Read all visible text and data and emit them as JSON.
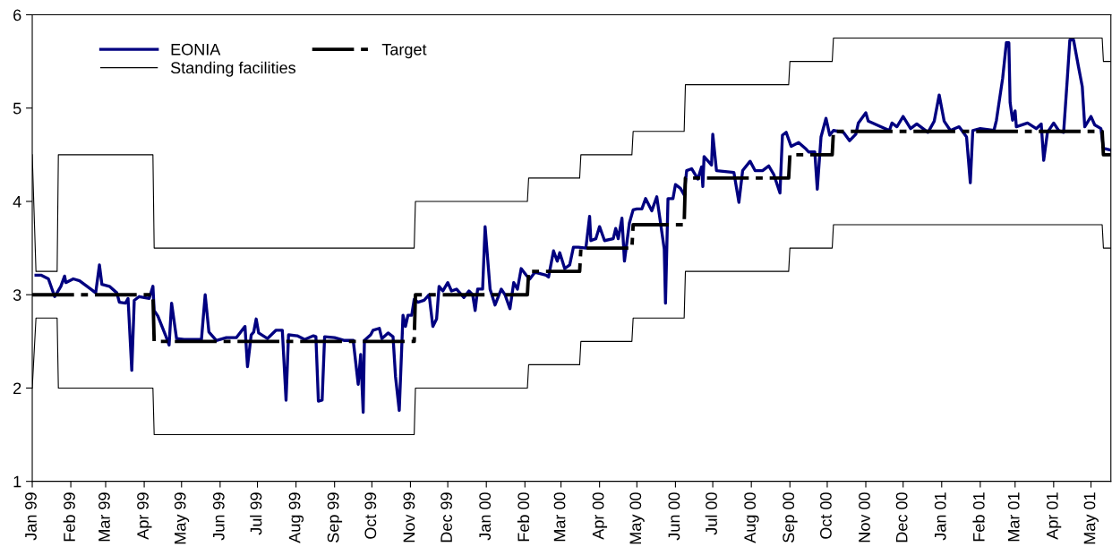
{
  "chart_data": {
    "type": "line",
    "xlim": [
      "1999-01-01",
      "2001-05-17"
    ],
    "ylim": [
      1,
      6
    ],
    "yticks": [
      1,
      2,
      3,
      4,
      5,
      6
    ],
    "xticks": [
      {
        "value": "1999-01-01",
        "label": "Jan 99"
      },
      {
        "value": "1999-02-01",
        "label": "Feb 99"
      },
      {
        "value": "1999-03-01",
        "label": "Mar 99"
      },
      {
        "value": "1999-04-01",
        "label": "Apr 99"
      },
      {
        "value": "1999-05-01",
        "label": "May 99"
      },
      {
        "value": "1999-06-01",
        "label": "Jun 99"
      },
      {
        "value": "1999-07-01",
        "label": "Jul 99"
      },
      {
        "value": "1999-08-01",
        "label": "Aug 99"
      },
      {
        "value": "1999-09-01",
        "label": "Sep 99"
      },
      {
        "value": "1999-10-01",
        "label": "Oct 99"
      },
      {
        "value": "1999-11-01",
        "label": "Nov 99"
      },
      {
        "value": "1999-12-01",
        "label": "Dec 99"
      },
      {
        "value": "2000-01-01",
        "label": "Jan 00"
      },
      {
        "value": "2000-02-01",
        "label": "Feb 00"
      },
      {
        "value": "2000-03-01",
        "label": "Mar 00"
      },
      {
        "value": "2000-04-01",
        "label": "Apr 00"
      },
      {
        "value": "2000-05-01",
        "label": "May 00"
      },
      {
        "value": "2000-06-01",
        "label": "Jun 00"
      },
      {
        "value": "2000-07-01",
        "label": "Jul 00"
      },
      {
        "value": "2000-08-01",
        "label": "Aug 00"
      },
      {
        "value": "2000-09-01",
        "label": "Sep 00"
      },
      {
        "value": "2000-10-01",
        "label": "Oct 00"
      },
      {
        "value": "2000-11-01",
        "label": "Nov 00"
      },
      {
        "value": "2000-12-01",
        "label": "Dec 00"
      },
      {
        "value": "2001-01-01",
        "label": "Jan 01"
      },
      {
        "value": "2001-02-01",
        "label": "Feb 01"
      },
      {
        "value": "2001-03-01",
        "label": "Mar 01"
      },
      {
        "value": "2001-04-01",
        "label": "Apr 01"
      },
      {
        "value": "2001-05-01",
        "label": "May 01"
      }
    ],
    "grid": false,
    "legend": "top left",
    "marker": "none",
    "series": [
      {
        "name": "EONIA",
        "color": "#000080",
        "line_style": "solid",
        "x": [
          "1999-01-04",
          "1999-01-08",
          "1999-01-14",
          "1999-01-19",
          "1999-01-24",
          "1999-01-27",
          "1999-01-28",
          "1999-02-03",
          "1999-02-08",
          "1999-02-17",
          "1999-02-21",
          "1999-02-24",
          "1999-02-26",
          "1999-03-04",
          "1999-03-10",
          "1999-03-12",
          "1999-03-17",
          "1999-03-19",
          "1999-03-22",
          "1999-03-24",
          "1999-03-28",
          "1999-04-05",
          "1999-04-08",
          "1999-04-09",
          "1999-04-12",
          "1999-04-18",
          "1999-04-21",
          "1999-04-23",
          "1999-04-27",
          "1999-05-03",
          "1999-05-17",
          "1999-05-20",
          "1999-05-23",
          "1999-05-29",
          "1999-06-06",
          "1999-06-14",
          "1999-06-21",
          "1999-06-23",
          "1999-06-26",
          "1999-06-28",
          "1999-06-30",
          "1999-07-02",
          "1999-07-09",
          "1999-07-16",
          "1999-07-21",
          "1999-07-24",
          "1999-07-26",
          "1999-08-02",
          "1999-08-08",
          "1999-08-15",
          "1999-08-17",
          "1999-08-19",
          "1999-08-22",
          "1999-08-24",
          "1999-09-01",
          "1999-09-09",
          "1999-09-16",
          "1999-09-20",
          "1999-09-22",
          "1999-09-24",
          "1999-09-25",
          "1999-09-30",
          "1999-10-02",
          "1999-10-07",
          "1999-10-09",
          "1999-10-14",
          "1999-10-18",
          "1999-10-20",
          "1999-10-23",
          "1999-10-26",
          "1999-10-28",
          "1999-10-30",
          "1999-11-02",
          "1999-11-04",
          "1999-11-07",
          "1999-11-12",
          "1999-11-16",
          "1999-11-19",
          "1999-11-22",
          "1999-11-24",
          "1999-11-27",
          "1999-12-01",
          "1999-12-04",
          "1999-12-08",
          "1999-12-14",
          "1999-12-18",
          "1999-12-21",
          "1999-12-23",
          "1999-12-25",
          "1999-12-29",
          "1999-12-31",
          "2000-01-04",
          "2000-01-08",
          "2000-01-13",
          "2000-01-16",
          "2000-01-20",
          "2000-01-23",
          "2000-01-26",
          "2000-01-29",
          "2000-02-02",
          "2000-02-05",
          "2000-02-09",
          "2000-02-18",
          "2000-02-20",
          "2000-02-24",
          "2000-02-27",
          "2000-02-29",
          "2000-03-04",
          "2000-03-08",
          "2000-03-11",
          "2000-03-15",
          "2000-03-21",
          "2000-03-24",
          "2000-03-25",
          "2000-03-29",
          "2000-04-01",
          "2000-04-05",
          "2000-04-12",
          "2000-04-14",
          "2000-04-16",
          "2000-04-19",
          "2000-04-21",
          "2000-04-25",
          "2000-04-28",
          "2000-05-01",
          "2000-05-05",
          "2000-05-08",
          "2000-05-13",
          "2000-05-17",
          "2000-05-23",
          "2000-05-24",
          "2000-05-26",
          "2000-05-30",
          "2000-06-01",
          "2000-06-05",
          "2000-06-08",
          "2000-06-10",
          "2000-06-14",
          "2000-06-19",
          "2000-06-22",
          "2000-06-23",
          "2000-06-24",
          "2000-06-30",
          "2000-07-01",
          "2000-07-04",
          "2000-07-18",
          "2000-07-22",
          "2000-07-25",
          "2000-07-31",
          "2000-08-04",
          "2000-08-10",
          "2000-08-15",
          "2000-08-19",
          "2000-08-24",
          "2000-08-26",
          "2000-08-29",
          "2000-09-02",
          "2000-09-08",
          "2000-09-14",
          "2000-09-16",
          "2000-09-21",
          "2000-09-23",
          "2000-09-26",
          "2000-09-30",
          "2000-10-03",
          "2000-10-06",
          "2000-10-14",
          "2000-10-19",
          "2000-10-24",
          "2000-10-26",
          "2000-11-01",
          "2000-11-03",
          "2000-11-13",
          "2000-11-20",
          "2000-11-22",
          "2000-11-26",
          "2000-12-01",
          "2000-12-07",
          "2000-12-12",
          "2000-12-21",
          "2000-12-26",
          "2000-12-30",
          "2001-01-03",
          "2001-01-08",
          "2001-01-15",
          "2001-01-21",
          "2001-01-24",
          "2001-01-26",
          "2001-02-01",
          "2001-02-12",
          "2001-02-14",
          "2001-02-19",
          "2001-02-22",
          "2001-02-24",
          "2001-02-25",
          "2001-02-27",
          "2001-03-01",
          "2001-03-02",
          "2001-03-11",
          "2001-03-18",
          "2001-03-22",
          "2001-03-24",
          "2001-03-27",
          "2001-04-01",
          "2001-04-05",
          "2001-04-09",
          "2001-04-12",
          "2001-04-14",
          "2001-04-17",
          "2001-04-21",
          "2001-04-24",
          "2001-04-26",
          "2001-05-01",
          "2001-05-04",
          "2001-05-09",
          "2001-05-11",
          "2001-05-17"
        ],
        "values": [
          3.21,
          3.21,
          3.17,
          2.98,
          3.09,
          3.2,
          3.13,
          3.17,
          3.15,
          3.06,
          3.02,
          3.32,
          3.11,
          3.09,
          3.02,
          2.92,
          2.91,
          2.96,
          2.19,
          2.94,
          2.98,
          2.96,
          3.09,
          2.83,
          2.77,
          2.57,
          2.46,
          2.91,
          2.53,
          2.52,
          2.52,
          3.0,
          2.6,
          2.51,
          2.54,
          2.54,
          2.66,
          2.23,
          2.57,
          2.6,
          2.74,
          2.59,
          2.53,
          2.62,
          2.62,
          1.87,
          2.57,
          2.56,
          2.52,
          2.56,
          2.55,
          1.86,
          1.87,
          2.55,
          2.54,
          2.51,
          2.51,
          2.04,
          2.36,
          1.74,
          2.51,
          2.57,
          2.62,
          2.64,
          2.53,
          2.59,
          2.55,
          2.12,
          1.76,
          2.78,
          2.66,
          2.78,
          2.78,
          2.95,
          2.92,
          2.94,
          3.0,
          2.66,
          2.74,
          3.09,
          3.04,
          3.13,
          3.04,
          3.06,
          2.97,
          3.04,
          3.0,
          2.83,
          3.06,
          3.06,
          3.73,
          3.06,
          2.89,
          3.06,
          3.0,
          2.85,
          3.13,
          3.06,
          3.28,
          3.21,
          3.17,
          3.24,
          3.21,
          3.19,
          3.47,
          3.36,
          3.45,
          3.28,
          3.32,
          3.51,
          3.51,
          3.5,
          3.84,
          3.58,
          3.6,
          3.73,
          3.58,
          3.6,
          3.71,
          3.6,
          3.82,
          3.36,
          3.77,
          3.91,
          3.92,
          3.92,
          4.03,
          3.9,
          4.05,
          3.49,
          2.91,
          4.03,
          4.03,
          4.18,
          4.14,
          4.07,
          4.33,
          4.35,
          4.24,
          4.37,
          4.16,
          4.48,
          4.39,
          4.72,
          4.33,
          4.31,
          3.99,
          4.33,
          4.43,
          4.33,
          4.33,
          4.38,
          4.29,
          4.09,
          4.71,
          4.74,
          4.59,
          4.63,
          4.56,
          4.53,
          4.53,
          4.13,
          4.69,
          4.89,
          4.71,
          4.76,
          4.74,
          4.65,
          4.72,
          4.84,
          4.95,
          4.86,
          4.8,
          4.76,
          4.84,
          4.8,
          4.91,
          4.78,
          4.83,
          4.74,
          4.86,
          5.14,
          4.86,
          4.76,
          4.8,
          4.69,
          4.2,
          4.76,
          4.78,
          4.76,
          4.87,
          5.32,
          5.7,
          5.7,
          5.06,
          4.87,
          4.97,
          4.8,
          4.84,
          4.78,
          4.83,
          4.44,
          4.74,
          4.84,
          4.76,
          4.74,
          5.32,
          5.73,
          5.73,
          5.44,
          5.23,
          4.8,
          4.91,
          4.82,
          4.78,
          4.57,
          4.55
        ]
      },
      {
        "name": "Standing facilities",
        "color": "#000000",
        "line_style": "solid",
        "x": [
          "1999-01-01",
          "1999-01-04",
          "1999-01-21",
          "1999-01-22",
          "1999-04-08",
          "1999-04-09",
          "1999-11-04",
          "1999-11-05",
          "2000-02-03",
          "2000-02-04",
          "2000-03-16",
          "2000-03-17",
          "2000-04-27",
          "2000-04-28",
          "2000-06-08",
          "2000-06-09",
          "2000-08-31",
          "2000-09-01",
          "2000-10-05",
          "2000-10-06",
          "2001-05-10",
          "2001-05-11",
          "2001-05-17"
        ],
        "values": [
          4.5,
          3.25,
          3.25,
          4.5,
          4.5,
          3.5,
          3.5,
          4.0,
          4.0,
          4.25,
          4.25,
          4.5,
          4.5,
          4.75,
          4.75,
          5.25,
          5.25,
          5.5,
          5.5,
          5.75,
          5.75,
          5.5,
          5.5
        ]
      },
      {
        "name": "Target",
        "color": "#000000",
        "line_style": "dashed",
        "x": [
          "1999-01-01",
          "1999-04-08",
          "1999-04-09",
          "1999-11-04",
          "1999-11-05",
          "2000-02-03",
          "2000-02-04",
          "2000-03-16",
          "2000-03-17",
          "2000-04-27",
          "2000-04-28",
          "2000-06-08",
          "2000-06-09",
          "2000-08-31",
          "2000-09-01",
          "2000-10-05",
          "2000-10-06",
          "2001-05-10",
          "2001-05-11",
          "2001-05-17"
        ],
        "values": [
          3.0,
          3.0,
          2.5,
          2.5,
          3.0,
          3.0,
          3.25,
          3.25,
          3.5,
          3.5,
          3.75,
          3.75,
          4.25,
          4.25,
          4.5,
          4.5,
          4.75,
          4.75,
          4.5,
          4.5
        ]
      },
      {
        "color": "#000000",
        "line_style": "solid",
        "x": [
          "1999-01-01",
          "1999-01-04",
          "1999-01-21",
          "1999-01-22",
          "1999-04-08",
          "1999-04-09",
          "1999-11-04",
          "1999-11-05",
          "2000-02-03",
          "2000-02-04",
          "2000-03-16",
          "2000-03-17",
          "2000-04-27",
          "2000-04-28",
          "2000-06-08",
          "2000-06-09",
          "2000-08-31",
          "2000-09-01",
          "2000-10-05",
          "2000-10-06",
          "2001-05-10",
          "2001-05-11",
          "2001-05-17"
        ],
        "values": [
          2.0,
          2.75,
          2.75,
          2.0,
          2.0,
          1.5,
          1.5,
          2.0,
          2.0,
          2.25,
          2.25,
          2.5,
          2.5,
          2.75,
          2.75,
          3.25,
          3.25,
          3.5,
          3.5,
          3.75,
          3.75,
          3.5,
          3.5
        ]
      }
    ]
  }
}
